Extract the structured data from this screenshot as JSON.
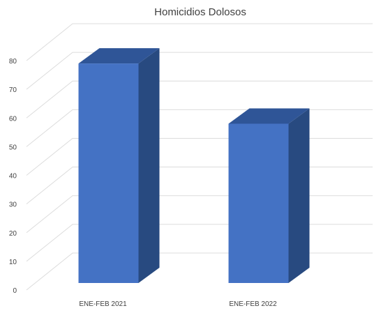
{
  "chart_data": {
    "type": "bar",
    "title": "Homicidios Dolosos",
    "categories": [
      "ENE-FEB 2021",
      "ENE-FEB 2022"
    ],
    "values": [
      79,
      58
    ],
    "ylim": [
      0,
      80
    ],
    "yticks": [
      0,
      10,
      20,
      30,
      40,
      50,
      60,
      70,
      80
    ],
    "grid": true,
    "style": "3d-column",
    "colors": {
      "front": "#4472c4",
      "top": "#2f5597",
      "side": "#284a80",
      "grid": "#dcdcdc",
      "text": "#404040"
    }
  }
}
